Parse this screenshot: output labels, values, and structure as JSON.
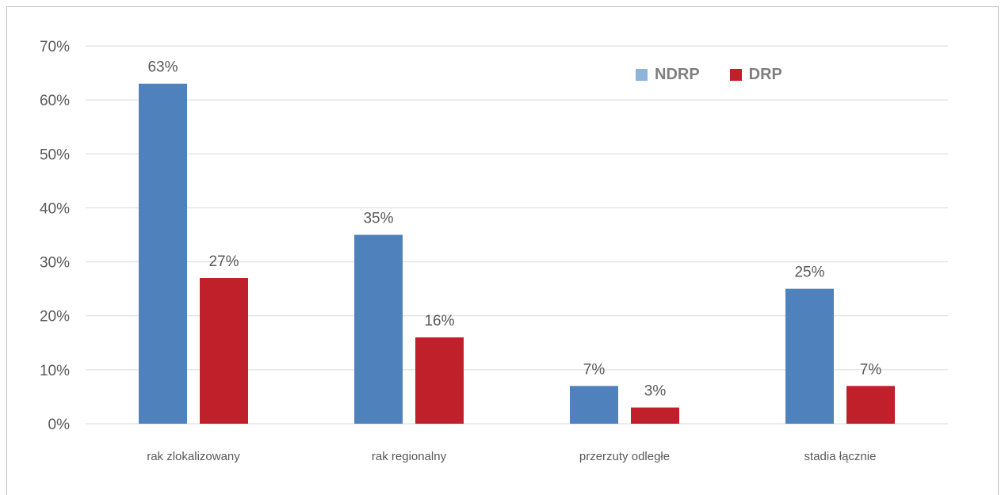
{
  "chart_data": {
    "type": "bar",
    "categories": [
      "rak zlokalizowany",
      "rak regionalny",
      "przerzuty odległe",
      "stadia łącznie"
    ],
    "series": [
      {
        "name": "NDRP",
        "values": [
          63,
          35,
          7,
          25
        ],
        "color": "#4f81bd"
      },
      {
        "name": "DRP",
        "values": [
          27,
          16,
          3,
          7
        ],
        "color": "#c0202a"
      }
    ],
    "data_labels": [
      [
        "63%",
        "35%",
        "7%",
        "25%"
      ],
      [
        "27%",
        "16%",
        "3%",
        "7%"
      ]
    ],
    "yticks": [
      "0%",
      "10%",
      "20%",
      "30%",
      "40%",
      "50%",
      "60%",
      "70%"
    ],
    "ylim": [
      0,
      70
    ],
    "y_unit": "%",
    "grid": true,
    "legend_position": "top-right"
  },
  "colors": {
    "gridline": "#d9d9d9",
    "tick_text": "#595959",
    "frame": "#bfbfbf"
  }
}
